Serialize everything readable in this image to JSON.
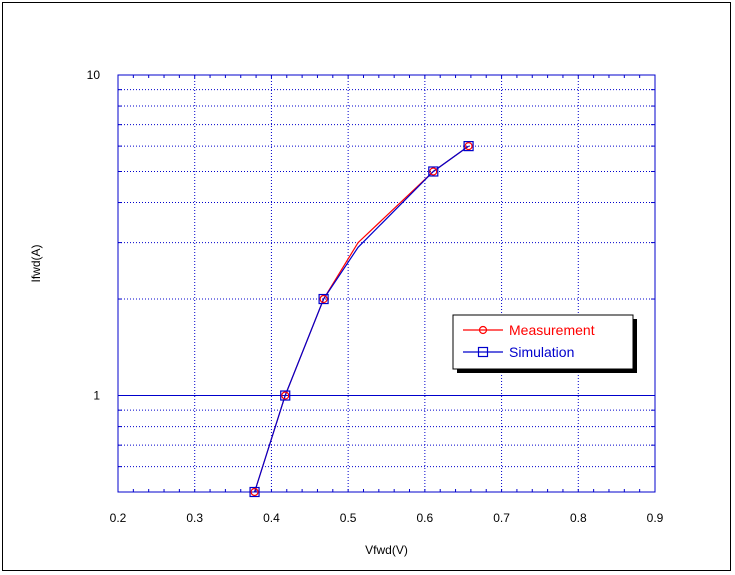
{
  "chart_data": {
    "type": "line",
    "title": "",
    "xlabel": "Vfwd(V)",
    "ylabel": "Ifwd(A)",
    "xlim": [
      0.2,
      0.9
    ],
    "ylim": [
      0.5,
      10
    ],
    "yscale": "log",
    "grid": true,
    "legend_position": "center-right",
    "x_ticks": [
      "0.2",
      "0.3",
      "0.4",
      "0.5",
      "0.6",
      "0.7",
      "0.8",
      "0.9"
    ],
    "y_ticks": [
      "1",
      "10"
    ],
    "series": [
      {
        "name": "Measurement",
        "color": "#ff0000",
        "marker": "circle",
        "x": [
          0.378,
          0.418,
          0.468,
          0.513,
          0.611,
          0.657
        ],
        "y": [
          0.5,
          1.0,
          2.0,
          3.0,
          5.0,
          6.0
        ],
        "marker_x": [
          0.378,
          0.418,
          0.468,
          0.611,
          0.657
        ],
        "marker_y": [
          0.5,
          1.0,
          2.0,
          5.0,
          6.0
        ]
      },
      {
        "name": "Simulation",
        "color": "#0000cc",
        "marker": "square",
        "x": [
          0.378,
          0.418,
          0.468,
          0.513,
          0.611,
          0.657
        ],
        "y": [
          0.5,
          1.0,
          2.0,
          2.9,
          5.0,
          6.0
        ],
        "marker_x": [
          0.378,
          0.418,
          0.468,
          0.611,
          0.657
        ],
        "marker_y": [
          0.5,
          1.0,
          2.0,
          5.0,
          6.0
        ]
      }
    ]
  },
  "colors": {
    "grid": "#0000cc",
    "axes": "#0000cc"
  }
}
